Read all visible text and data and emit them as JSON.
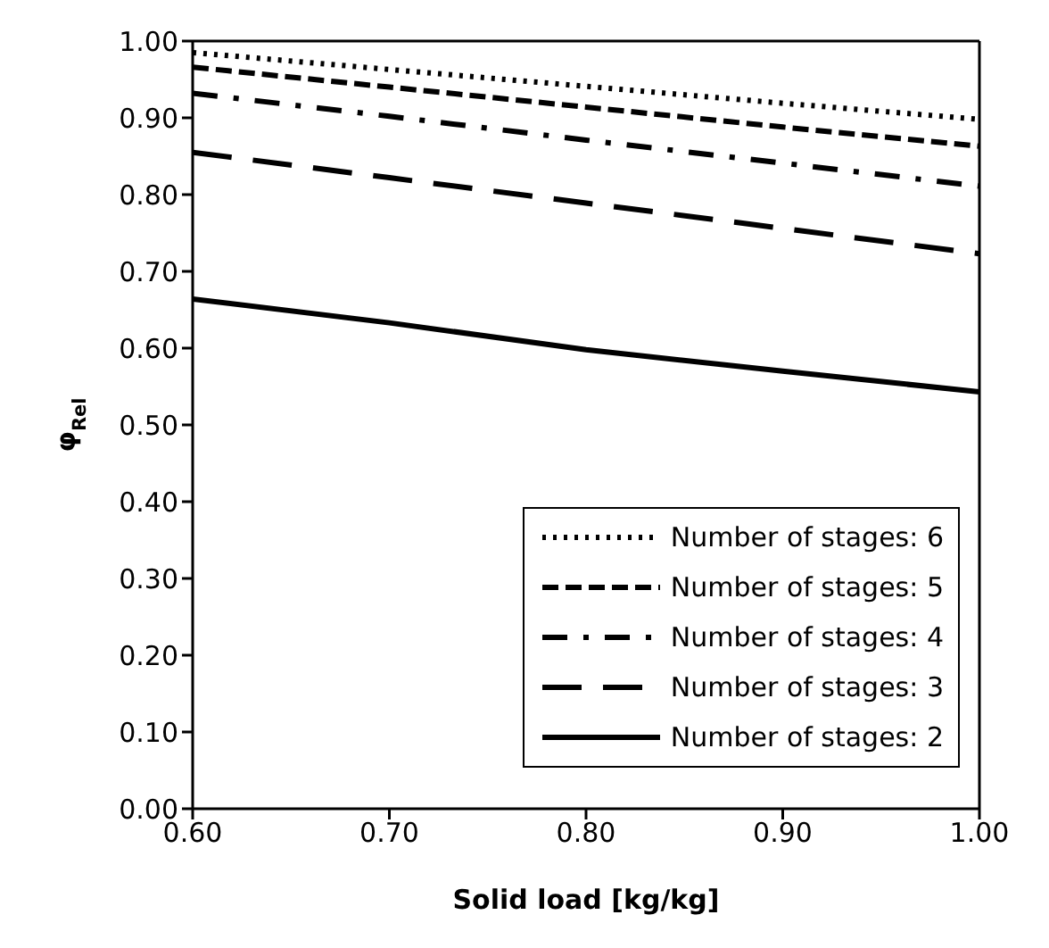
{
  "chart_data": {
    "type": "line",
    "xlabel": "Solid load [kg/kg]",
    "ylabel": "φ$_{Rel}$",
    "x": [
      0.6,
      0.7,
      0.8,
      0.9,
      1.0
    ],
    "xlim": [
      0.6,
      1.0
    ],
    "xticks": [
      {
        "value": 0.6,
        "label": "0.60"
      },
      {
        "value": 0.7,
        "label": "0.70"
      },
      {
        "value": 0.8,
        "label": "0.80"
      },
      {
        "value": 0.9,
        "label": "0.90"
      },
      {
        "value": 1.0,
        "label": "1.00"
      }
    ],
    "ylim": [
      0,
      1
    ],
    "yticks": [
      {
        "value": 0,
        "label": "0.00"
      },
      {
        "value": 0.1,
        "label": "0.10"
      },
      {
        "value": 0.2,
        "label": "0.20"
      },
      {
        "value": 0.3,
        "label": "0.30"
      },
      {
        "value": 0.4,
        "label": "0.40"
      },
      {
        "value": 0.5,
        "label": "0.50"
      },
      {
        "value": 0.6,
        "label": "0.60"
      },
      {
        "value": 0.7,
        "label": "0.70"
      },
      {
        "value": 0.8,
        "label": "0.80"
      },
      {
        "value": 0.9,
        "label": "0.90"
      },
      {
        "value": 1.0,
        "label": "1.00"
      }
    ],
    "grid": false,
    "legend": "bottom right",
    "marker": "none",
    "series": [
      {
        "name": "Number of stages: 6",
        "color": "#000000",
        "line_style": "dotted",
        "values": [
          0.985,
          0.963,
          0.941,
          0.919,
          0.898
        ]
      },
      {
        "name": "Number of stages: 5",
        "color": "#000000",
        "line_style": "dashed",
        "values": [
          0.966,
          0.94,
          0.914,
          0.888,
          0.863
        ]
      },
      {
        "name": "Number of stages: 4",
        "color": "#000000",
        "line_style": "dashdot",
        "values": [
          0.932,
          0.902,
          0.871,
          0.841,
          0.811
        ]
      },
      {
        "name": "Number of stages: 3",
        "color": "#000000",
        "line_style": "longdash",
        "values": [
          0.855,
          0.822,
          0.789,
          0.756,
          0.723
        ]
      },
      {
        "name": "Number of stages: 2",
        "color": "#000000",
        "line_style": "solid",
        "values": [
          0.664,
          0.633,
          0.598,
          0.57,
          0.543
        ]
      }
    ]
  }
}
